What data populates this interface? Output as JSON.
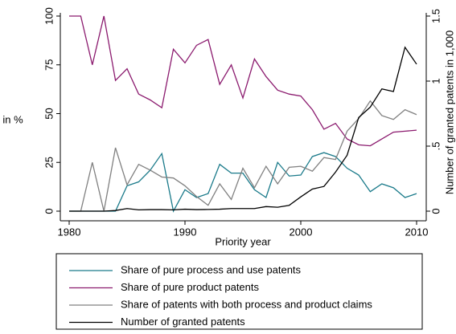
{
  "chart_data": {
    "type": "line",
    "xlabel": "Priority year",
    "ylabel": "in %",
    "y2label": "Number of granted patents in 1,000",
    "x": [
      1980,
      1981,
      1982,
      1983,
      1984,
      1985,
      1986,
      1987,
      1988,
      1989,
      1990,
      1991,
      1992,
      1993,
      1994,
      1995,
      1996,
      1997,
      1998,
      1999,
      2000,
      2001,
      2002,
      2003,
      2004,
      2005,
      2006,
      2007,
      2008,
      2009,
      2010
    ],
    "xlim": [
      1980,
      2010
    ],
    "xticks": [
      1980,
      1990,
      2000,
      2010
    ],
    "ylim": [
      0,
      100
    ],
    "yticks": [
      0,
      25,
      50,
      75,
      100
    ],
    "y2lim": [
      0,
      1.5
    ],
    "y2ticks": [
      0,
      {
        "value": 0.5,
        "label": ".5"
      },
      1,
      1.5
    ],
    "grid": false,
    "legend": "bottom",
    "series": [
      {
        "name": "Share of pure process and use patents",
        "color": "#1a7a8a",
        "values": [
          0,
          0,
          0,
          0,
          0,
          13,
          15,
          21,
          29.5,
          0,
          11,
          7,
          9,
          24,
          19.5,
          19.5,
          11,
          7,
          25,
          18,
          18.5,
          28,
          30,
          28,
          22,
          18.5,
          10,
          14,
          12,
          7,
          9
        ]
      },
      {
        "name": "Share of pure product patents",
        "color": "#8b1a6e",
        "values": [
          100,
          100,
          75,
          100,
          67,
          73,
          60,
          57,
          53,
          83,
          76,
          85,
          88,
          65,
          75,
          58,
          78,
          69,
          62,
          60,
          59,
          52,
          42,
          45,
          37,
          34,
          33.5,
          37,
          40.5,
          41,
          41.5
        ]
      },
      {
        "name": "Share of patents with both process and product claims",
        "color": "#808080",
        "values": [
          0,
          0,
          25,
          0,
          32.5,
          13.5,
          24,
          21,
          17.5,
          17,
          13,
          7.5,
          3,
          14,
          6,
          22,
          12,
          23,
          14,
          22.5,
          23,
          20.5,
          27.5,
          26.5,
          41,
          47.5,
          56.5,
          49,
          47,
          52,
          49.5
        ]
      },
      {
        "name": "Number of granted patents",
        "color": "#000000",
        "axis": "y2",
        "values": [
          0,
          0,
          0,
          0,
          0.005,
          0.02,
          0.01,
          0.012,
          0.012,
          0.01,
          0.015,
          0.012,
          0.013,
          0.015,
          0.02,
          0.02,
          0.02,
          0.035,
          0.03,
          0.045,
          0.11,
          0.17,
          0.19,
          0.3,
          0.43,
          0.72,
          0.8,
          0.94,
          0.92,
          1.26,
          1.13
        ]
      }
    ]
  }
}
